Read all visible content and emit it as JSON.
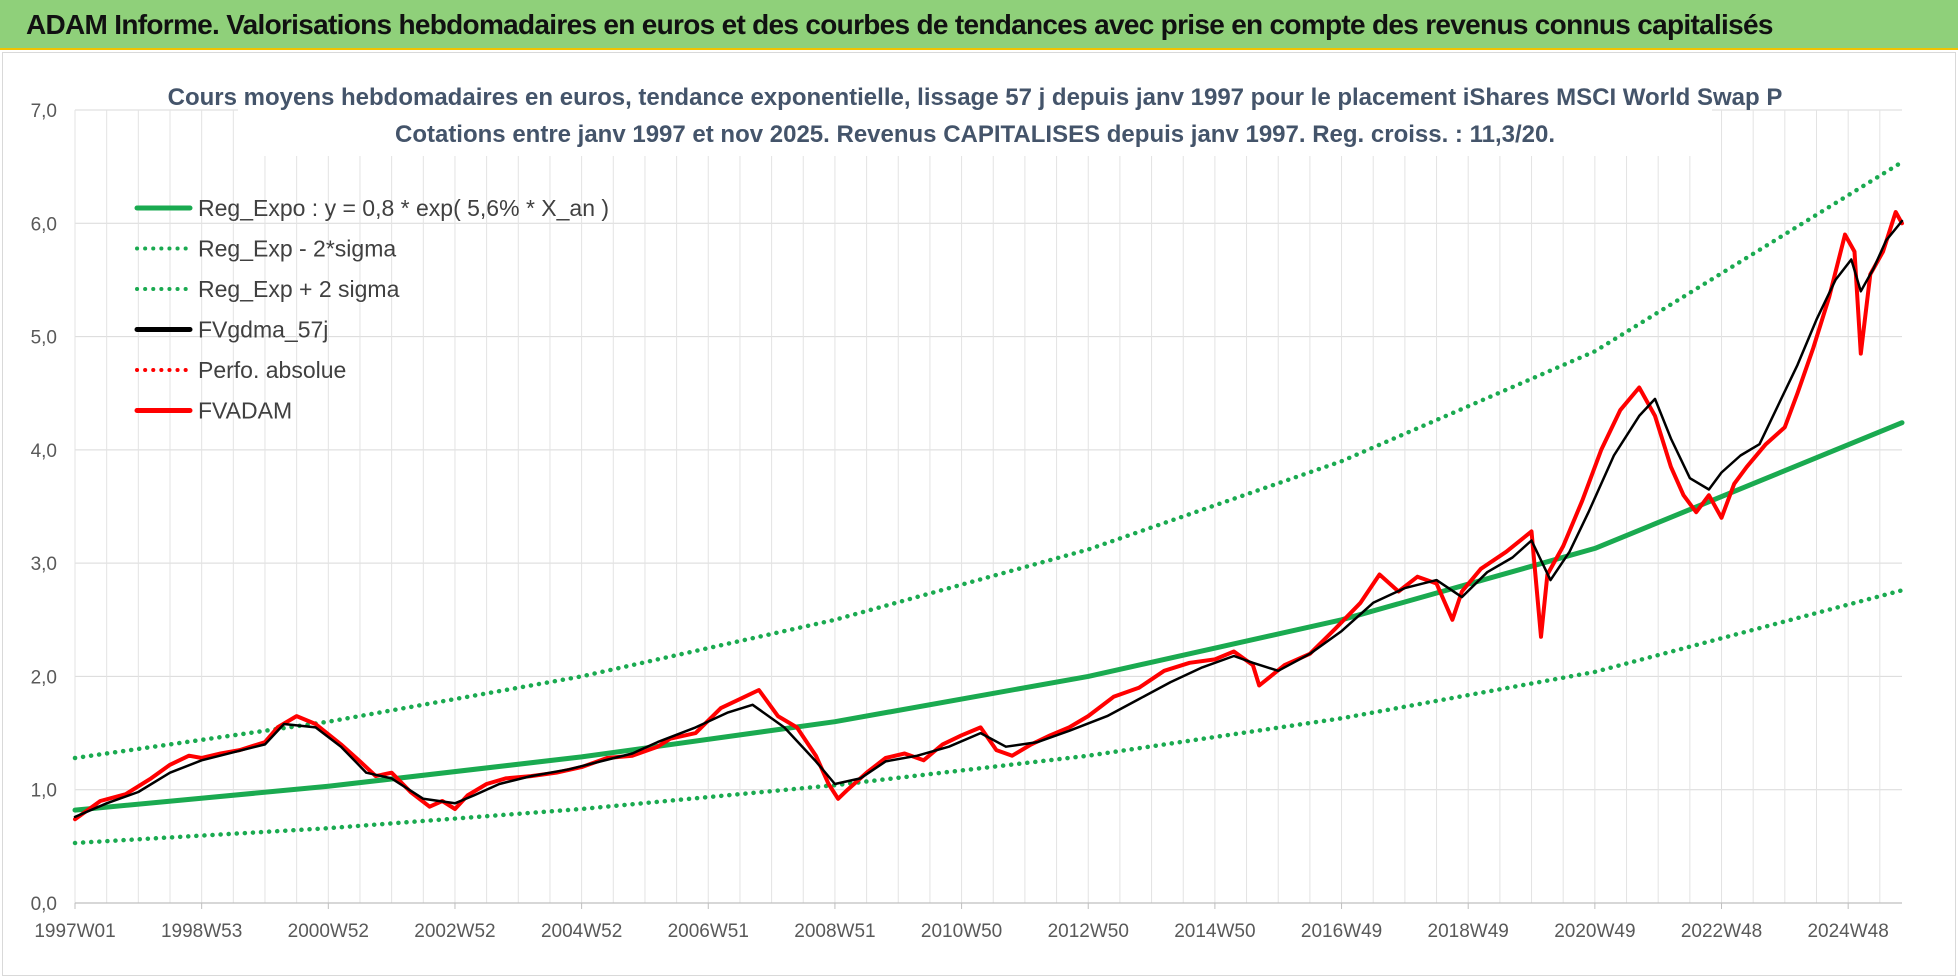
{
  "header": {
    "title": "ADAM Informe. Valorisations hebdomadaires en euros et des courbes de tendances avec prise en compte des revenus connus capitalisés"
  },
  "colors": {
    "banner": "#8fd07a",
    "trend": "#1aaa50",
    "price": "#ff0000",
    "moving_average": "#000000"
  },
  "chart_data": {
    "type": "line",
    "title": "Cours moyens hebdomadaires en euros, tendance exponentielle, lissage 57 j depuis janv 1997 pour le placement iShares MSCI World Swap P",
    "subtitle": "Cotations entre janv 1997 et nov 2025. Revenus CAPITALISES depuis janv 1997. Reg. croiss. : 11,3/20.",
    "xlabel": "",
    "ylabel": "",
    "ylim": [
      0,
      7
    ],
    "yticks": [
      "0,0",
      "1,0",
      "2,0",
      "3,0",
      "4,0",
      "5,0",
      "6,0",
      "7,0"
    ],
    "xrange": [
      1997.0,
      2025.85
    ],
    "xticks": [
      {
        "label": "1997W01",
        "x": 1997.0
      },
      {
        "label": "1998W53",
        "x": 1999.0
      },
      {
        "label": "2000W52",
        "x": 2001.0
      },
      {
        "label": "2002W52",
        "x": 2003.0
      },
      {
        "label": "2004W52",
        "x": 2005.0
      },
      {
        "label": "2006W51",
        "x": 2007.0
      },
      {
        "label": "2008W51",
        "x": 2009.0
      },
      {
        "label": "2010W50",
        "x": 2011.0
      },
      {
        "label": "2012W50",
        "x": 2013.0
      },
      {
        "label": "2014W50",
        "x": 2015.0
      },
      {
        "label": "2016W49",
        "x": 2017.0
      },
      {
        "label": "2018W49",
        "x": 2019.0
      },
      {
        "label": "2020W49",
        "x": 2021.0
      },
      {
        "label": "2022W48",
        "x": 2023.0
      },
      {
        "label": "2024W48",
        "x": 2025.0
      }
    ],
    "grid": true,
    "legend_position": "top-left",
    "series": [
      {
        "name": "Reg_Expo : y = 0,8 * exp( 5,6% *  X_an )",
        "style": "solid",
        "color": "#1aaa50",
        "x": [
          1997.0,
          2001.0,
          2005.0,
          2009.0,
          2013.0,
          2017.0,
          2021.0,
          2025.85
        ],
        "values": [
          0.82,
          1.03,
          1.29,
          1.6,
          2.0,
          2.5,
          3.13,
          4.24
        ]
      },
      {
        "name": "Reg_Exp - 2*sigma",
        "style": "dotted",
        "color": "#1aaa50",
        "x": [
          1997.0,
          2001.0,
          2005.0,
          2009.0,
          2013.0,
          2017.0,
          2021.0,
          2025.85
        ],
        "values": [
          0.53,
          0.66,
          0.83,
          1.04,
          1.3,
          1.63,
          2.04,
          2.76
        ]
      },
      {
        "name": "Reg_Exp + 2 sigma",
        "style": "dotted",
        "color": "#1aaa50",
        "x": [
          1997.0,
          2001.0,
          2005.0,
          2009.0,
          2013.0,
          2017.0,
          2021.0,
          2025.85
        ],
        "values": [
          1.28,
          1.6,
          2.0,
          2.5,
          3.12,
          3.9,
          4.87,
          6.54
        ]
      },
      {
        "name": "FVgdma_57j",
        "style": "solid",
        "color": "#000000",
        "x": [
          1997.0,
          1997.5,
          1998.0,
          1998.5,
          1999.0,
          1999.5,
          2000.0,
          2000.3,
          2000.8,
          2001.2,
          2001.6,
          2002.0,
          2002.5,
          2003.0,
          2003.3,
          2003.7,
          2004.2,
          2004.8,
          2005.3,
          2005.8,
          2006.2,
          2006.8,
          2007.3,
          2007.7,
          2008.2,
          2008.7,
          2009.0,
          2009.4,
          2009.8,
          2010.3,
          2010.8,
          2011.3,
          2011.7,
          2012.2,
          2012.7,
          2013.3,
          2013.8,
          2014.3,
          2014.8,
          2015.3,
          2015.6,
          2016.0,
          2016.5,
          2017.0,
          2017.5,
          2018.0,
          2018.5,
          2018.9,
          2019.3,
          2019.7,
          2020.0,
          2020.3,
          2020.6,
          2020.9,
          2021.3,
          2021.7,
          2021.95,
          2022.2,
          2022.5,
          2022.8,
          2023.0,
          2023.3,
          2023.6,
          2023.9,
          2024.2,
          2024.5,
          2024.8,
          2025.05,
          2025.2,
          2025.4,
          2025.6,
          2025.85
        ],
        "values": [
          0.76,
          0.88,
          0.98,
          1.15,
          1.26,
          1.33,
          1.4,
          1.58,
          1.55,
          1.38,
          1.15,
          1.1,
          0.92,
          0.88,
          0.95,
          1.05,
          1.12,
          1.18,
          1.25,
          1.32,
          1.42,
          1.55,
          1.68,
          1.75,
          1.55,
          1.25,
          1.05,
          1.1,
          1.25,
          1.3,
          1.38,
          1.5,
          1.38,
          1.42,
          1.52,
          1.65,
          1.8,
          1.95,
          2.08,
          2.18,
          2.12,
          2.05,
          2.2,
          2.4,
          2.65,
          2.78,
          2.85,
          2.7,
          2.92,
          3.05,
          3.2,
          2.85,
          3.1,
          3.45,
          3.95,
          4.3,
          4.45,
          4.1,
          3.75,
          3.65,
          3.8,
          3.95,
          4.05,
          4.4,
          4.75,
          5.15,
          5.5,
          5.68,
          5.4,
          5.6,
          5.85,
          6.02
        ]
      },
      {
        "name": "Perfo. absolue",
        "style": "dotted",
        "color": "#ff0000",
        "x": [],
        "values": []
      },
      {
        "name": "FVADAM",
        "style": "solid",
        "color": "#ff0000",
        "x": [
          1997.0,
          1997.4,
          1997.8,
          1998.2,
          1998.5,
          1998.8,
          1999.0,
          1999.3,
          1999.6,
          2000.0,
          2000.2,
          2000.5,
          2000.8,
          2001.2,
          2001.5,
          2001.75,
          2002.0,
          2002.3,
          2002.6,
          2002.8,
          2003.0,
          2003.2,
          2003.5,
          2003.8,
          2004.2,
          2004.6,
          2005.0,
          2005.4,
          2005.8,
          2006.2,
          2006.4,
          2006.8,
          2007.2,
          2007.5,
          2007.8,
          2008.1,
          2008.4,
          2008.7,
          2008.9,
          2009.05,
          2009.2,
          2009.5,
          2009.8,
          2010.1,
          2010.4,
          2010.7,
          2011.0,
          2011.3,
          2011.55,
          2011.8,
          2012.1,
          2012.4,
          2012.7,
          2013.0,
          2013.4,
          2013.8,
          2014.2,
          2014.6,
          2015.0,
          2015.3,
          2015.6,
          2015.7,
          2016.1,
          2016.5,
          2016.9,
          2017.3,
          2017.6,
          2017.9,
          2018.2,
          2018.5,
          2018.75,
          2018.9,
          2019.2,
          2019.6,
          2020.0,
          2020.15,
          2020.25,
          2020.5,
          2020.8,
          2021.1,
          2021.4,
          2021.7,
          2021.95,
          2022.2,
          2022.4,
          2022.6,
          2022.8,
          2023.0,
          2023.2,
          2023.4,
          2023.7,
          2024.0,
          2024.2,
          2024.45,
          2024.7,
          2024.95,
          2025.1,
          2025.2,
          2025.35,
          2025.55,
          2025.75,
          2025.85
        ],
        "values": [
          0.74,
          0.9,
          0.96,
          1.1,
          1.22,
          1.3,
          1.28,
          1.32,
          1.35,
          1.42,
          1.55,
          1.65,
          1.58,
          1.4,
          1.25,
          1.12,
          1.15,
          0.98,
          0.85,
          0.9,
          0.83,
          0.95,
          1.05,
          1.1,
          1.12,
          1.15,
          1.2,
          1.28,
          1.3,
          1.38,
          1.45,
          1.5,
          1.72,
          1.8,
          1.88,
          1.65,
          1.55,
          1.3,
          1.05,
          0.92,
          1.0,
          1.15,
          1.28,
          1.32,
          1.26,
          1.4,
          1.48,
          1.55,
          1.35,
          1.3,
          1.4,
          1.48,
          1.55,
          1.65,
          1.82,
          1.9,
          2.05,
          2.12,
          2.15,
          2.22,
          2.1,
          1.92,
          2.1,
          2.2,
          2.42,
          2.65,
          2.9,
          2.75,
          2.88,
          2.82,
          2.5,
          2.75,
          2.95,
          3.1,
          3.28,
          2.35,
          2.9,
          3.15,
          3.55,
          4.0,
          4.35,
          4.55,
          4.3,
          3.85,
          3.6,
          3.45,
          3.6,
          3.4,
          3.7,
          3.85,
          4.05,
          4.2,
          4.5,
          4.9,
          5.35,
          5.9,
          5.75,
          4.85,
          5.55,
          5.75,
          6.1,
          6.0
        ]
      }
    ]
  }
}
